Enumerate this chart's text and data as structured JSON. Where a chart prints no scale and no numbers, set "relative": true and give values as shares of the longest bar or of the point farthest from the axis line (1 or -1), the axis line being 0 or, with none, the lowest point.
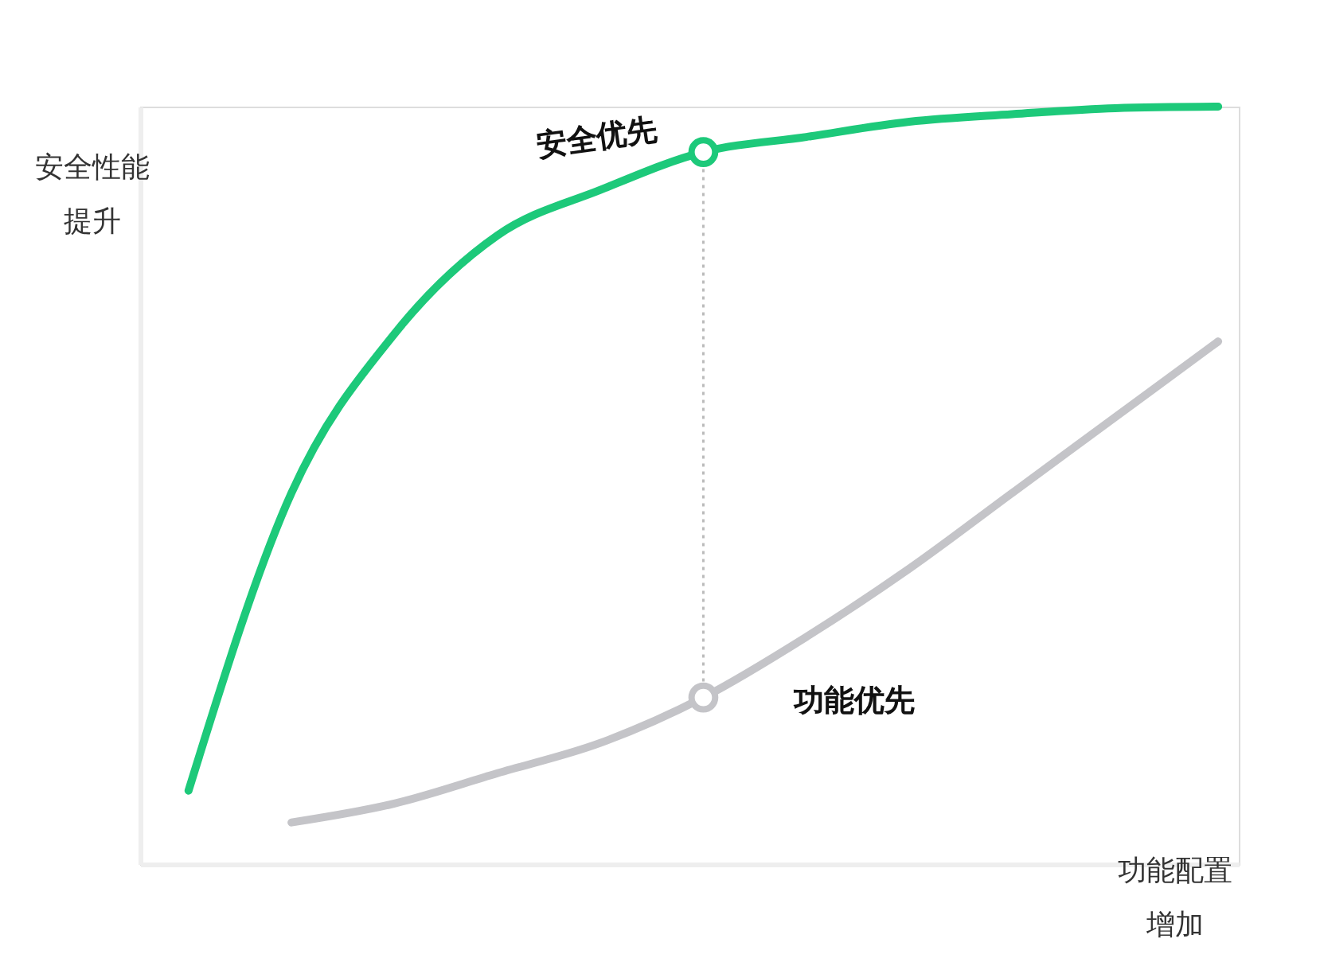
{
  "chart_data": {
    "type": "line",
    "relative": true,
    "categories": [
      null,
      null,
      null,
      null,
      null,
      null,
      null,
      null,
      null,
      null,
      null
    ],
    "xlabel": "功能配置增加",
    "ylabel": "安全性能提升",
    "series": [
      {
        "name": "安全优先",
        "color": "#1dc97a",
        "values": [
          0.097,
          0.49,
          0.7,
          0.83,
          0.89,
          0.94,
          0.96,
          0.98,
          0.99,
          0.998,
          1
        ]
      },
      {
        "name": "功能优先",
        "color": "#c4c4c8",
        "values": [
          null,
          0.055,
          0.08,
          0.12,
          0.16,
          0.22,
          0.3,
          0.39,
          0.49,
          0.59,
          0.69
        ]
      }
    ],
    "grid": false,
    "legend": false,
    "line_style": "solid"
  }
}
